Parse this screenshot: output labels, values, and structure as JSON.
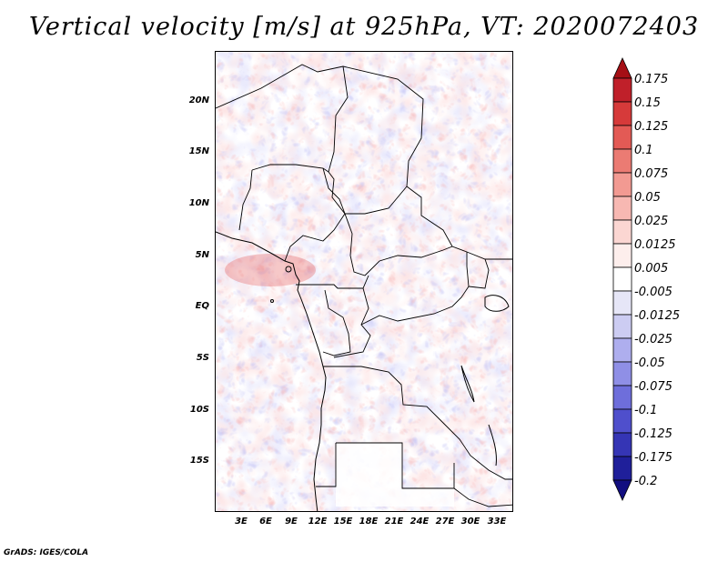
{
  "title": "Vertical velocity [m/s] at 925hPa, VT: 2020072403",
  "footer": "GrADS: IGES/COLA",
  "map": {
    "lat_labels": [
      "20N",
      "15N",
      "10N",
      "5N",
      "EQ",
      "5S",
      "10S",
      "15S"
    ],
    "lat_values": [
      20,
      15,
      10,
      5,
      0,
      -5,
      -10,
      -15
    ],
    "lon_labels": [
      "3E",
      "6E",
      "9E",
      "12E",
      "15E",
      "18E",
      "21E",
      "24E",
      "27E",
      "30E",
      "33E"
    ],
    "lon_values": [
      3,
      6,
      9,
      12,
      15,
      18,
      21,
      24,
      27,
      30,
      33
    ],
    "lat_range": [
      -20,
      25
    ],
    "lon_range": [
      0,
      35
    ]
  },
  "colorbar": {
    "labels": [
      "0.175",
      "0.15",
      "0.125",
      "0.1",
      "0.075",
      "0.05",
      "0.025",
      "0.0125",
      "0.005",
      "-0.005",
      "-0.0125",
      "-0.025",
      "-0.05",
      "-0.075",
      "-0.1",
      "-0.125",
      "-0.175",
      "-0.2"
    ],
    "colors": [
      "#a50f15",
      "#c0202a",
      "#d63a3a",
      "#e35a55",
      "#eb7b73",
      "#f29a92",
      "#f7b8b2",
      "#fbd6d2",
      "#fdeeec",
      "#ffffff",
      "#e6e6f7",
      "#ccccf2",
      "#aeaeee",
      "#8f8fe6",
      "#6e6edb",
      "#4f4fcc",
      "#3535b5",
      "#1f1f9a",
      "#120e80"
    ]
  }
}
